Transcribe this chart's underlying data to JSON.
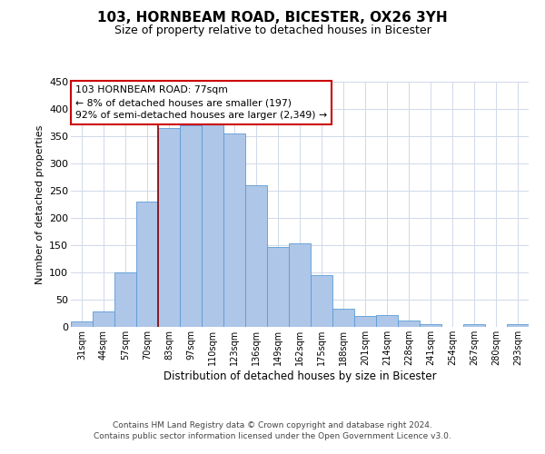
{
  "title": "103, HORNBEAM ROAD, BICESTER, OX26 3YH",
  "subtitle": "Size of property relative to detached houses in Bicester",
  "xlabel": "Distribution of detached houses by size in Bicester",
  "ylabel": "Number of detached properties",
  "categories": [
    "31sqm",
    "44sqm",
    "57sqm",
    "70sqm",
    "83sqm",
    "97sqm",
    "110sqm",
    "123sqm",
    "136sqm",
    "149sqm",
    "162sqm",
    "175sqm",
    "188sqm",
    "201sqm",
    "214sqm",
    "228sqm",
    "241sqm",
    "254sqm",
    "267sqm",
    "280sqm",
    "293sqm"
  ],
  "values": [
    10,
    28,
    100,
    230,
    365,
    370,
    373,
    355,
    260,
    147,
    153,
    95,
    33,
    20,
    22,
    11,
    5,
    0,
    5,
    0,
    5
  ],
  "bar_color": "#aec6e8",
  "bar_edge_color": "#5b9bd5",
  "ylim": [
    0,
    450
  ],
  "yticks": [
    0,
    50,
    100,
    150,
    200,
    250,
    300,
    350,
    400,
    450
  ],
  "vline_x_index": 3.5,
  "vline_color": "#8b0000",
  "annotation_title": "103 HORNBEAM ROAD: 77sqm",
  "annotation_line1": "← 8% of detached houses are smaller (197)",
  "annotation_line2": "92% of semi-detached houses are larger (2,349) →",
  "annotation_box_color": "#ffffff",
  "annotation_box_edge": "#cc0000",
  "footer_line1": "Contains HM Land Registry data © Crown copyright and database right 2024.",
  "footer_line2": "Contains public sector information licensed under the Open Government Licence v3.0.",
  "background_color": "#ffffff",
  "grid_color": "#d0d8e8"
}
